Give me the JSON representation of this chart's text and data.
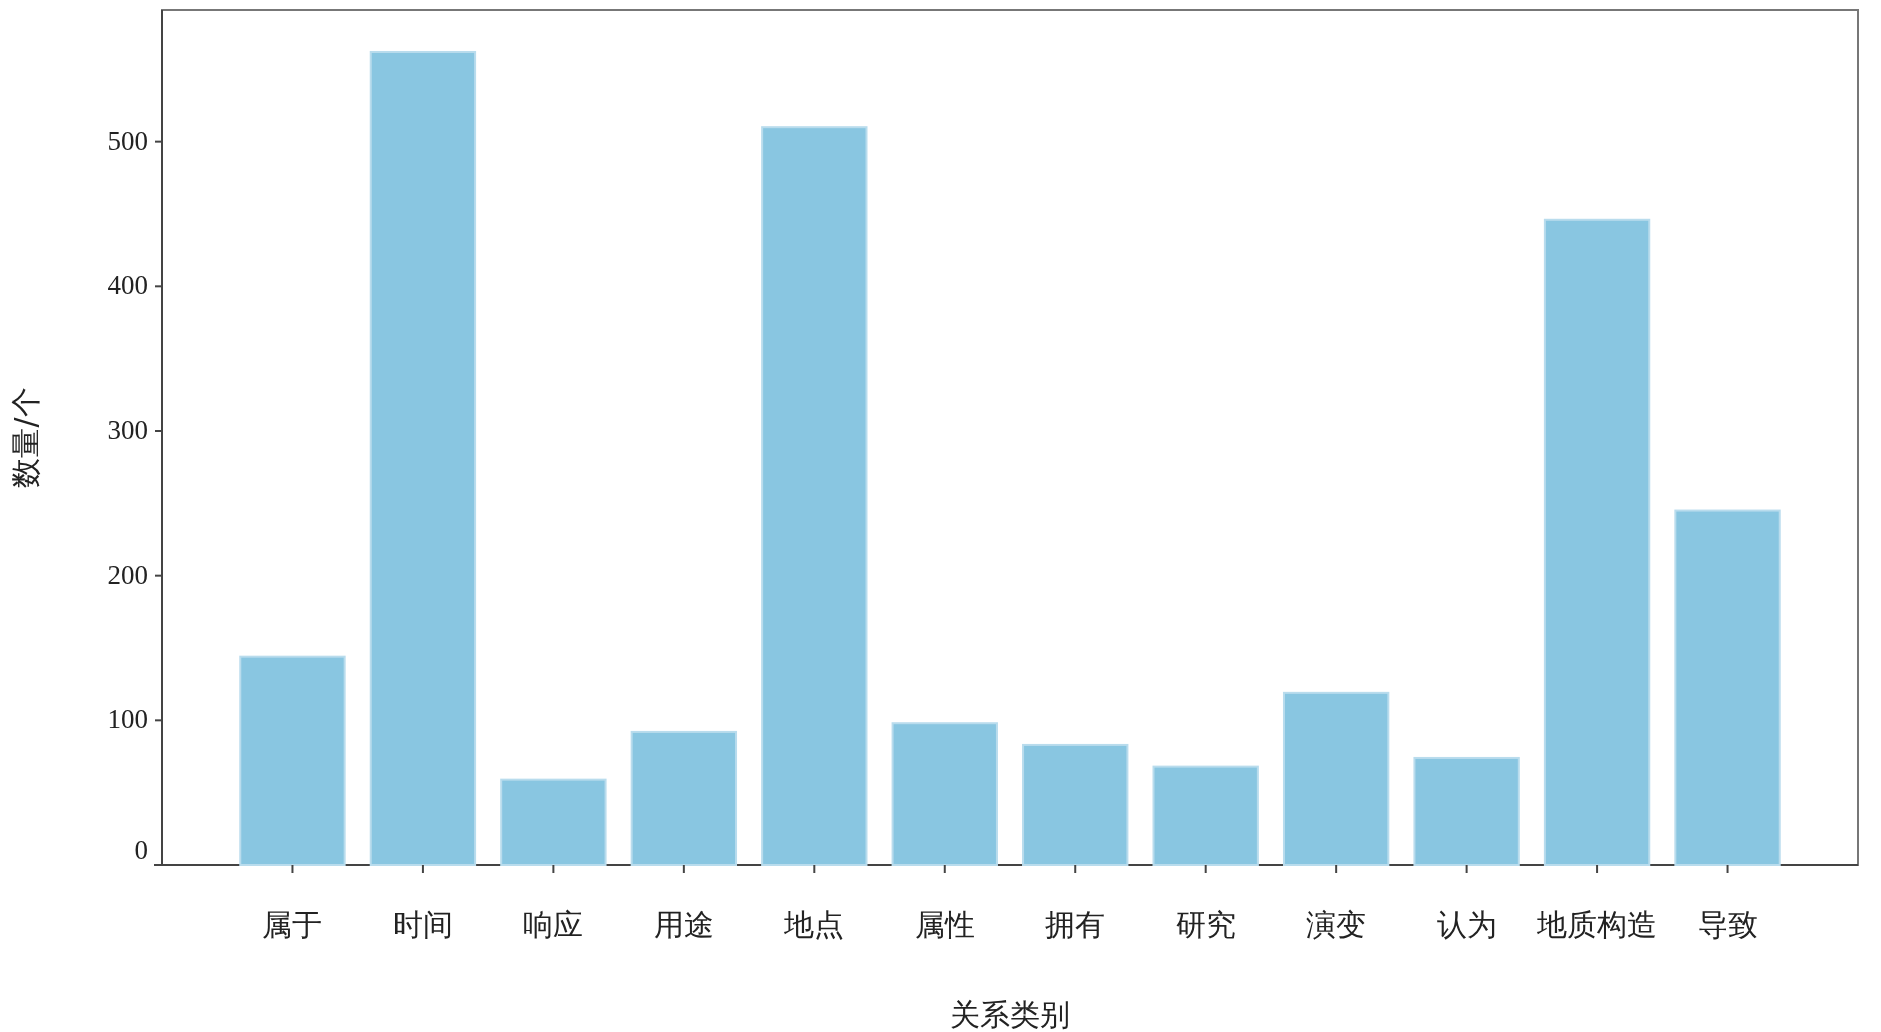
{
  "chart_data": {
    "type": "bar",
    "xlabel": "关系类别",
    "ylabel": "数量/个",
    "categories": [
      "属于",
      "时间",
      "响应",
      "用途",
      "地点",
      "属性",
      "拥有",
      "研究",
      "演变",
      "认为",
      "地质构造",
      "导致"
    ],
    "values": [
      144,
      562,
      59,
      92,
      510,
      98,
      83,
      68,
      119,
      74,
      446,
      245
    ],
    "color": "#89c6e1",
    "ylim": [
      0,
      591
    ],
    "yticks": [
      0,
      100,
      200,
      300,
      400,
      500
    ],
    "grid": false
  }
}
